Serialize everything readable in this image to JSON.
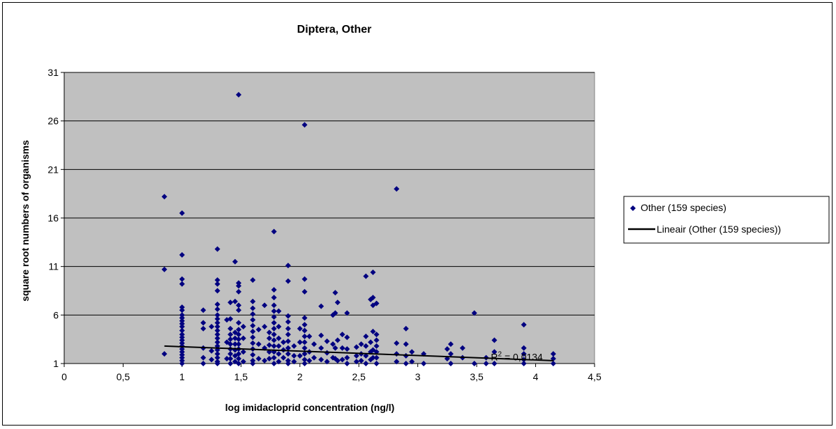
{
  "chart_data": {
    "type": "scatter",
    "title": "Diptera, Other",
    "xlabel": "log imidacloprid concentration (ng/l)",
    "ylabel": "square root numbers of organisms",
    "xlim": [
      0,
      4.5
    ],
    "ylim": [
      1,
      31
    ],
    "x_ticks": [
      "0",
      "0,5",
      "1",
      "1,5",
      "2",
      "2,5",
      "3",
      "3,5",
      "4",
      "4,5"
    ],
    "y_ticks": [
      "1",
      "6",
      "11",
      "16",
      "21",
      "26",
      "31"
    ],
    "grid": "horizontal",
    "legend_position": "right",
    "plot_background": "#c0c0c0",
    "series": [
      {
        "name": "Other (159 species)",
        "type": "scatter",
        "marker": "diamond",
        "color": "#000080",
        "points": [
          [
            0.85,
            18.2
          ],
          [
            0.85,
            10.7
          ],
          [
            0.85,
            2.0
          ],
          [
            1.0,
            16.5
          ],
          [
            1.0,
            12.2
          ],
          [
            1.0,
            9.7
          ],
          [
            1.0,
            9.2
          ],
          [
            1.0,
            6.8
          ],
          [
            1.0,
            6.5
          ],
          [
            1.0,
            6.0
          ],
          [
            1.0,
            5.7
          ],
          [
            1.0,
            5.4
          ],
          [
            1.0,
            5.1
          ],
          [
            1.0,
            4.8
          ],
          [
            1.0,
            4.4
          ],
          [
            1.0,
            4.0
          ],
          [
            1.0,
            3.7
          ],
          [
            1.0,
            3.4
          ],
          [
            1.0,
            3.1
          ],
          [
            1.0,
            2.8
          ],
          [
            1.0,
            2.5
          ],
          [
            1.0,
            2.2
          ],
          [
            1.0,
            1.9
          ],
          [
            1.0,
            1.6
          ],
          [
            1.0,
            1.3
          ],
          [
            1.0,
            1.0
          ],
          [
            1.18,
            6.5
          ],
          [
            1.18,
            5.2
          ],
          [
            1.18,
            4.6
          ],
          [
            1.18,
            2.6
          ],
          [
            1.18,
            1.6
          ],
          [
            1.18,
            1.0
          ],
          [
            1.25,
            4.8
          ],
          [
            1.25,
            2.3
          ],
          [
            1.25,
            1.4
          ],
          [
            1.3,
            12.8
          ],
          [
            1.3,
            9.6
          ],
          [
            1.3,
            9.2
          ],
          [
            1.3,
            8.5
          ],
          [
            1.3,
            7.1
          ],
          [
            1.3,
            6.6
          ],
          [
            1.3,
            6.0
          ],
          [
            1.3,
            5.6
          ],
          [
            1.3,
            5.2
          ],
          [
            1.3,
            4.8
          ],
          [
            1.3,
            4.4
          ],
          [
            1.3,
            4.0
          ],
          [
            1.3,
            3.6
          ],
          [
            1.3,
            3.2
          ],
          [
            1.3,
            2.8
          ],
          [
            1.3,
            2.4
          ],
          [
            1.3,
            2.0
          ],
          [
            1.3,
            1.6
          ],
          [
            1.3,
            1.2
          ],
          [
            1.3,
            1.0
          ],
          [
            1.38,
            5.5
          ],
          [
            1.38,
            3.2
          ],
          [
            1.38,
            1.5
          ],
          [
            1.41,
            7.3
          ],
          [
            1.41,
            5.6
          ],
          [
            1.41,
            4.6
          ],
          [
            1.41,
            4.0
          ],
          [
            1.41,
            3.5
          ],
          [
            1.41,
            3.0
          ],
          [
            1.41,
            2.5
          ],
          [
            1.41,
            2.0
          ],
          [
            1.41,
            1.5
          ],
          [
            1.41,
            1.0
          ],
          [
            1.45,
            11.5
          ],
          [
            1.45,
            7.4
          ],
          [
            1.45,
            4.2
          ],
          [
            1.45,
            3.6
          ],
          [
            1.45,
            3.0
          ],
          [
            1.45,
            2.4
          ],
          [
            1.45,
            1.8
          ],
          [
            1.45,
            1.2
          ],
          [
            1.48,
            28.7
          ],
          [
            1.48,
            9.3
          ],
          [
            1.48,
            9.0
          ],
          [
            1.48,
            8.4
          ],
          [
            1.48,
            7.0
          ],
          [
            1.48,
            6.5
          ],
          [
            1.48,
            5.2
          ],
          [
            1.48,
            4.5
          ],
          [
            1.48,
            4.0
          ],
          [
            1.48,
            3.5
          ],
          [
            1.48,
            3.0
          ],
          [
            1.48,
            2.5
          ],
          [
            1.48,
            2.0
          ],
          [
            1.48,
            1.5
          ],
          [
            1.48,
            1.0
          ],
          [
            1.52,
            4.8
          ],
          [
            1.52,
            3.6
          ],
          [
            1.52,
            2.2
          ],
          [
            1.52,
            1.2
          ],
          [
            1.6,
            9.6
          ],
          [
            1.6,
            7.4
          ],
          [
            1.6,
            6.7
          ],
          [
            1.6,
            6.1
          ],
          [
            1.6,
            5.5
          ],
          [
            1.6,
            4.9
          ],
          [
            1.6,
            4.3
          ],
          [
            1.6,
            3.7
          ],
          [
            1.6,
            3.1
          ],
          [
            1.6,
            2.5
          ],
          [
            1.6,
            1.9
          ],
          [
            1.6,
            1.3
          ],
          [
            1.6,
            1.0
          ],
          [
            1.65,
            4.5
          ],
          [
            1.65,
            3.0
          ],
          [
            1.65,
            1.5
          ],
          [
            1.7,
            7.0
          ],
          [
            1.7,
            4.8
          ],
          [
            1.7,
            2.6
          ],
          [
            1.7,
            1.3
          ],
          [
            1.74,
            4.2
          ],
          [
            1.74,
            3.6
          ],
          [
            1.74,
            2.9
          ],
          [
            1.74,
            2.2
          ],
          [
            1.74,
            1.5
          ],
          [
            1.78,
            14.6
          ],
          [
            1.78,
            8.6
          ],
          [
            1.78,
            7.8
          ],
          [
            1.78,
            7.0
          ],
          [
            1.78,
            6.4
          ],
          [
            1.78,
            5.8
          ],
          [
            1.78,
            5.2
          ],
          [
            1.78,
            4.6
          ],
          [
            1.78,
            4.0
          ],
          [
            1.78,
            3.4
          ],
          [
            1.78,
            2.8
          ],
          [
            1.78,
            2.2
          ],
          [
            1.78,
            1.6
          ],
          [
            1.78,
            1.0
          ],
          [
            1.82,
            6.4
          ],
          [
            1.82,
            4.8
          ],
          [
            1.82,
            3.6
          ],
          [
            1.82,
            2.8
          ],
          [
            1.82,
            2.0
          ],
          [
            1.82,
            1.2
          ],
          [
            1.86,
            3.2
          ],
          [
            1.86,
            2.4
          ],
          [
            1.86,
            1.6
          ],
          [
            1.9,
            11.1
          ],
          [
            1.9,
            9.5
          ],
          [
            1.9,
            5.9
          ],
          [
            1.9,
            5.3
          ],
          [
            1.9,
            4.6
          ],
          [
            1.9,
            4.0
          ],
          [
            1.9,
            3.3
          ],
          [
            1.9,
            2.6
          ],
          [
            1.9,
            2.0
          ],
          [
            1.9,
            1.3
          ],
          [
            1.9,
            1.0
          ],
          [
            1.95,
            2.8
          ],
          [
            1.95,
            1.8
          ],
          [
            1.95,
            1.2
          ],
          [
            2.0,
            4.6
          ],
          [
            2.0,
            3.2
          ],
          [
            2.0,
            1.8
          ],
          [
            2.04,
            25.6
          ],
          [
            2.04,
            9.7
          ],
          [
            2.04,
            8.4
          ],
          [
            2.04,
            5.7
          ],
          [
            2.04,
            5.0
          ],
          [
            2.04,
            4.4
          ],
          [
            2.04,
            3.8
          ],
          [
            2.04,
            3.2
          ],
          [
            2.04,
            2.6
          ],
          [
            2.04,
            2.0
          ],
          [
            2.04,
            1.4
          ],
          [
            2.04,
            1.0
          ],
          [
            2.08,
            3.8
          ],
          [
            2.08,
            2.2
          ],
          [
            2.08,
            1.3
          ],
          [
            2.12,
            3.0
          ],
          [
            2.12,
            1.6
          ],
          [
            2.18,
            6.9
          ],
          [
            2.18,
            3.9
          ],
          [
            2.18,
            2.6
          ],
          [
            2.18,
            1.4
          ],
          [
            2.23,
            3.3
          ],
          [
            2.23,
            2.1
          ],
          [
            2.23,
            1.2
          ],
          [
            2.28,
            6.0
          ],
          [
            2.28,
            3.0
          ],
          [
            2.28,
            1.6
          ],
          [
            2.3,
            8.3
          ],
          [
            2.3,
            6.2
          ],
          [
            2.3,
            2.6
          ],
          [
            2.3,
            1.5
          ],
          [
            2.32,
            7.3
          ],
          [
            2.32,
            3.4
          ],
          [
            2.32,
            1.3
          ],
          [
            2.36,
            4.0
          ],
          [
            2.36,
            2.6
          ],
          [
            2.36,
            1.4
          ],
          [
            2.4,
            6.2
          ],
          [
            2.4,
            3.7
          ],
          [
            2.4,
            2.5
          ],
          [
            2.4,
            1.6
          ],
          [
            2.4,
            1.0
          ],
          [
            2.48,
            2.7
          ],
          [
            2.48,
            1.8
          ],
          [
            2.48,
            1.2
          ],
          [
            2.52,
            3.0
          ],
          [
            2.52,
            2.0
          ],
          [
            2.52,
            1.3
          ],
          [
            2.56,
            10.0
          ],
          [
            2.56,
            3.8
          ],
          [
            2.56,
            2.8
          ],
          [
            2.56,
            1.8
          ],
          [
            2.56,
            1.0
          ],
          [
            2.6,
            7.6
          ],
          [
            2.6,
            3.2
          ],
          [
            2.6,
            2.2
          ],
          [
            2.6,
            1.4
          ],
          [
            2.62,
            10.4
          ],
          [
            2.62,
            7.8
          ],
          [
            2.62,
            7.0
          ],
          [
            2.62,
            4.3
          ],
          [
            2.62,
            2.4
          ],
          [
            2.62,
            1.6
          ],
          [
            2.65,
            7.2
          ],
          [
            2.65,
            4.0
          ],
          [
            2.65,
            3.4
          ],
          [
            2.65,
            2.8
          ],
          [
            2.65,
            2.2
          ],
          [
            2.65,
            1.6
          ],
          [
            2.65,
            1.0
          ],
          [
            2.82,
            19.0
          ],
          [
            2.82,
            3.1
          ],
          [
            2.82,
            2.0
          ],
          [
            2.82,
            1.2
          ],
          [
            2.9,
            4.6
          ],
          [
            2.9,
            3.0
          ],
          [
            2.9,
            1.8
          ],
          [
            2.9,
            1.0
          ],
          [
            2.95,
            2.2
          ],
          [
            2.95,
            1.2
          ],
          [
            3.05,
            2.0
          ],
          [
            3.05,
            1.0
          ],
          [
            3.25,
            2.5
          ],
          [
            3.25,
            1.5
          ],
          [
            3.28,
            3.0
          ],
          [
            3.28,
            2.0
          ],
          [
            3.28,
            1.0
          ],
          [
            3.38,
            2.6
          ],
          [
            3.38,
            1.6
          ],
          [
            3.48,
            6.2
          ],
          [
            3.48,
            1.0
          ],
          [
            3.58,
            1.6
          ],
          [
            3.58,
            1.0
          ],
          [
            3.65,
            3.4
          ],
          [
            3.65,
            2.2
          ],
          [
            3.65,
            1.0
          ],
          [
            3.9,
            5.0
          ],
          [
            3.9,
            2.6
          ],
          [
            3.9,
            2.0
          ],
          [
            3.9,
            1.4
          ],
          [
            3.9,
            1.0
          ],
          [
            4.15,
            2.0
          ],
          [
            4.15,
            1.5
          ],
          [
            4.15,
            1.0
          ]
        ]
      },
      {
        "name": "Lineair (Other (159 species))",
        "type": "line",
        "color": "#000000",
        "x": [
          0.85,
          4.15
        ],
        "y": [
          2.8,
          1.3
        ]
      }
    ],
    "annotations": [
      {
        "text_base": "R",
        "superscript": "2",
        "text_rest": " = 0,0134",
        "x": 3.62,
        "y": 1.6
      }
    ]
  }
}
